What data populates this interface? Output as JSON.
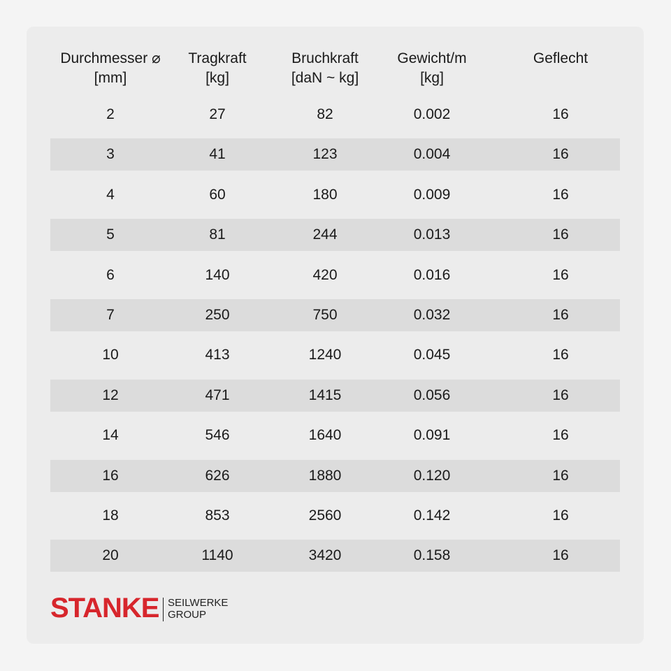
{
  "table": {
    "headers": [
      [
        "Durchmesser ⌀",
        "[mm]"
      ],
      [
        "Tragkraft",
        "[kg]"
      ],
      [
        "Bruchkraft",
        "[daN ~ kg]"
      ],
      [
        "Gewicht/m",
        "[kg]"
      ],
      [
        "Geflecht"
      ]
    ],
    "rows": [
      [
        "2",
        "27",
        "82",
        "0.002",
        "16"
      ],
      [
        "3",
        "41",
        "123",
        "0.004",
        "16"
      ],
      [
        "4",
        "60",
        "180",
        "0.009",
        "16"
      ],
      [
        "5",
        "81",
        "244",
        "0.013",
        "16"
      ],
      [
        "6",
        "140",
        "420",
        "0.016",
        "16"
      ],
      [
        "7",
        "250",
        "750",
        "0.032",
        "16"
      ],
      [
        "10",
        "413",
        "1240",
        "0.045",
        "16"
      ],
      [
        "12",
        "471",
        "1415",
        "0.056",
        "16"
      ],
      [
        "14",
        "546",
        "1640",
        "0.091",
        "16"
      ],
      [
        "16",
        "626",
        "1880",
        "0.120",
        "16"
      ],
      [
        "18",
        "853",
        "2560",
        "0.142",
        "16"
      ],
      [
        "20",
        "1140",
        "3420",
        "0.158",
        "16"
      ]
    ]
  },
  "logo": {
    "name": "STANKE",
    "lines": [
      "SEILWERKE",
      "GROUP"
    ]
  }
}
